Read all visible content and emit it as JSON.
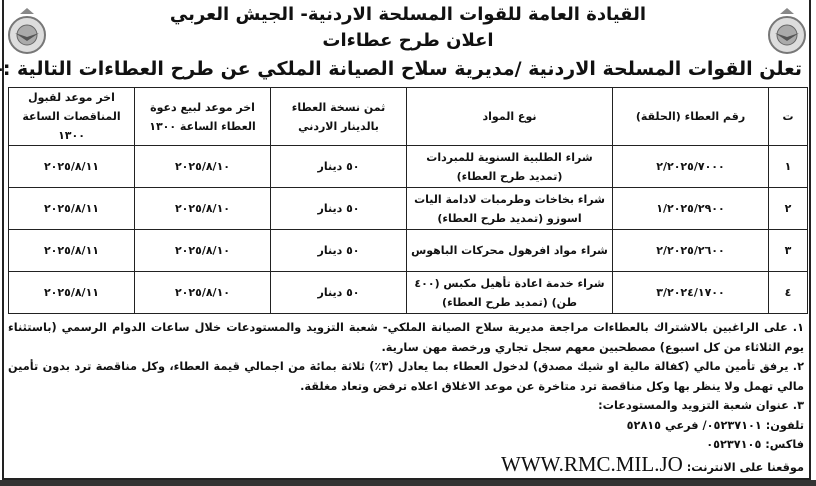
{
  "header": {
    "title": "القيادة العامة للقوات المسلحة الاردنية- الجيش العربي",
    "subtitle": "اعلان طرح عطاءات",
    "intro": "تعلن القوات المسلحة الاردنية /مديرية سلاح الصيانة الملكي عن طرح العطاءات التالية :-"
  },
  "table": {
    "columns": [
      "ت",
      "رقم العطاء (الحلقة)",
      "نوع المواد",
      "ثمن نسخة العطاء بالدينار الاردني",
      "اخر موعد لبيع دعوة العطاء الساعة ١٣٠٠",
      "اخر موعد لقبول المناقصات الساعة ١٣٠٠"
    ],
    "rows": [
      [
        "١",
        "٢/٢٠٢٥/٧٠٠٠",
        "شراء الطلبية السنوية للمبردات (تمديد طرح العطاء)",
        "٥٠ دينار",
        "٢٠٢٥/٨/١٠",
        "٢٠٢٥/٨/١١"
      ],
      [
        "٢",
        "١/٢٠٢٥/٢٩٠٠",
        "شراء بخاخات وطرمبات لادامة اليات اسوزو (تمديد طرح العطاء)",
        "٥٠ دينار",
        "٢٠٢٥/٨/١٠",
        "٢٠٢٥/٨/١١"
      ],
      [
        "٣",
        "٢/٢٠٢٥/٢٦٠٠",
        "شراء مواد افرهول محركات الباهوس",
        "٥٠ دينار",
        "٢٠٢٥/٨/١٠",
        "٢٠٢٥/٨/١١"
      ],
      [
        "٤",
        "٣/٢٠٢٤/١٧٠٠",
        "شراء خدمة اعادة تأهيل مكبس (٤٠٠ طن) (تمديد طرح العطاء)",
        "٥٠ دينار",
        "٢٠٢٥/٨/١٠",
        "٢٠٢٥/٨/١١"
      ]
    ]
  },
  "notes": {
    "n1": "١. على الراغبين بالاشتراك بالعطاءات مراجعة مديرية سلاح الصيانة الملكي- شعبة التزويد والمستودعات خلال ساعات الدوام الرسمي (باستثناء يوم الثلاثاء من كل اسبوع) مصطحبين معهم سجل تجاري ورخصة مهن سارية.",
    "n2": "٢. يرفق تأمين مالي (كفالة مالية او شيك مصدق) لدخول العطاء بما يعادل (٣٪) ثلاثة بمائة من اجمالي قيمة العطاء، وكل مناقصة ترد بدون تأمين مالي تهمل ولا ينظر بها وكل مناقصة ترد متاخرة عن موعد الاغلاق اعلاه ترفض وتعاد مغلقة.",
    "n3": "٣. عنوان شعبة التزويد والمستودعات:",
    "phone": "تلفون: ٠٥٢٣٧١٠١/ فرعي ٥٢٨١٥",
    "fax": "فاكس: ٠٥٢٣٧١٠٥",
    "website_label": "موقعنا على الانترنت:",
    "website": "WWW.RMC.MIL.JO"
  }
}
